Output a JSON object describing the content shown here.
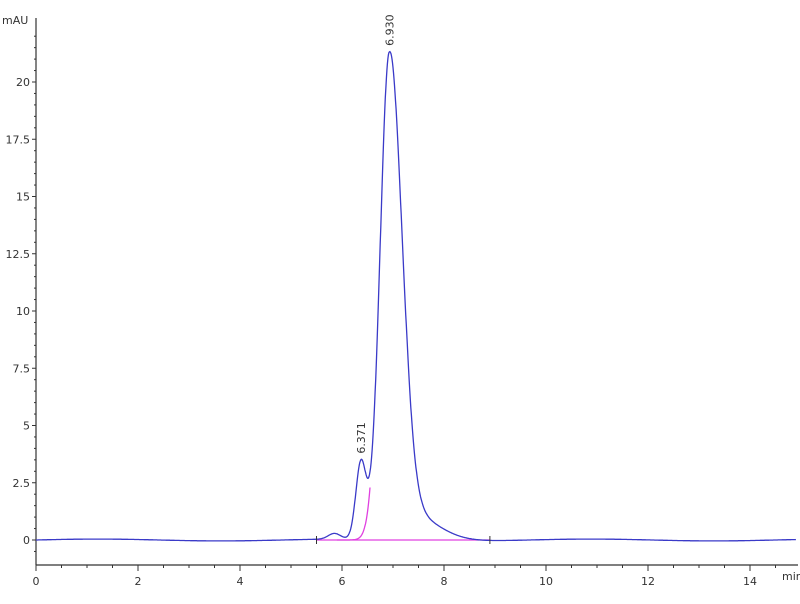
{
  "chart_data": {
    "type": "line",
    "title": "",
    "xlabel": "min",
    "ylabel": "mAU",
    "xlim": [
      0,
      14.9
    ],
    "ylim": [
      -1.1,
      22.7
    ],
    "x_ticks": [
      "0",
      "2",
      "4",
      "6",
      "8",
      "10",
      "12",
      "14"
    ],
    "y_ticks": [
      "0",
      "2.5",
      "5",
      "7.5",
      "10",
      "12.5",
      "15",
      "17.5",
      "20"
    ],
    "grid": false,
    "colors": {
      "signal": "#3a3ac8",
      "baseline": "#e040e0",
      "axis": "#333333"
    },
    "peaks": [
      {
        "label": "6.371",
        "rt": 6.371,
        "height": 3.3,
        "sigma_left": 0.1,
        "sigma_right": 0.1
      },
      {
        "label": "6.930",
        "rt": 6.93,
        "height": 21.3,
        "sigma_left": 0.18,
        "sigma_right": 0.24,
        "tail": 1.2,
        "tail_sigma": 0.55
      },
      {
        "label": "",
        "rt": 5.85,
        "height": 0.25,
        "sigma_left": 0.12,
        "sigma_right": 0.12
      }
    ],
    "integration_baseline": {
      "start": 5.5,
      "end": 8.9,
      "split": 6.55
    }
  }
}
